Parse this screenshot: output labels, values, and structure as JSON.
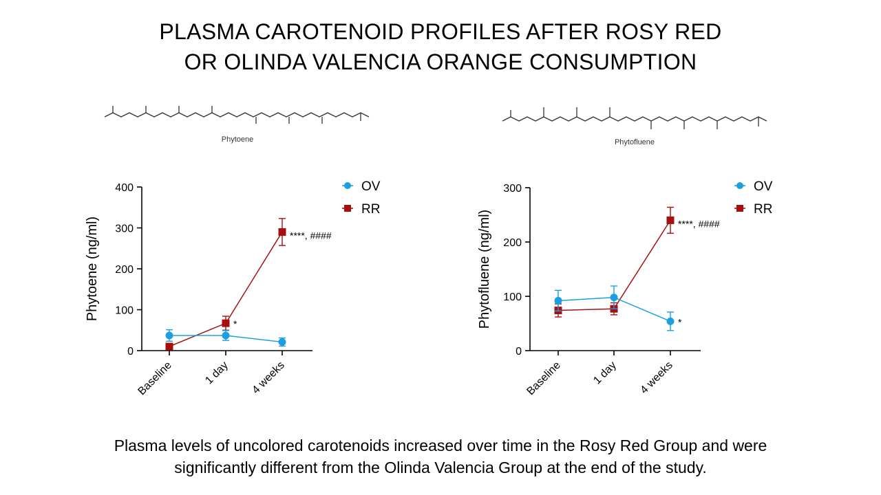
{
  "title_lines": [
    "PLASMA CAROTENOID PROFILES AFTER ROSY RED",
    "OR OLINDA VALENCIA ORANGE CONSUMPTION"
  ],
  "caption_lines": [
    "Plasma levels of uncolored carotenoids increased over time in the Rosy Red Group and were",
    "significantly different from the Olinda Valencia Group at the end of the study."
  ],
  "colors": {
    "OV": "#1a9fe0",
    "RR": "#a50f0f",
    "axis": "#000000"
  },
  "chart_data": [
    {
      "type": "line",
      "molecule_label": "Phytoene",
      "ylabel": "Phytoene (ng/ml)",
      "xlabel": "",
      "categories": [
        "Baseline",
        "1 day",
        "4 weeks"
      ],
      "ylim": [
        0,
        400
      ],
      "yticks": [
        0,
        100,
        200,
        300,
        400
      ],
      "legend": {
        "position": "top-right",
        "entries": [
          "OV",
          "RR"
        ]
      },
      "grid": false,
      "series": [
        {
          "name": "OV",
          "marker": "circle",
          "values": [
            37,
            37,
            21
          ],
          "errors": [
            14,
            12,
            10
          ]
        },
        {
          "name": "RR",
          "marker": "square",
          "values": [
            10,
            67,
            290
          ],
          "errors": [
            3,
            17,
            33
          ]
        }
      ],
      "annotations": [
        {
          "category_index": 1,
          "series": "RR",
          "text": "*"
        },
        {
          "category_index": 2,
          "series": "RR",
          "text": "****, ####"
        }
      ]
    },
    {
      "type": "line",
      "molecule_label": "Phytofluene",
      "ylabel": "Phytofluene (ng/ml)",
      "xlabel": "",
      "categories": [
        "Baseline",
        "1 day",
        "4 weeks"
      ],
      "ylim": [
        0,
        300
      ],
      "yticks": [
        0,
        100,
        200,
        300
      ],
      "legend": {
        "position": "top-right",
        "entries": [
          "OV",
          "RR"
        ]
      },
      "grid": false,
      "series": [
        {
          "name": "OV",
          "marker": "circle",
          "values": [
            92,
            98,
            54
          ],
          "errors": [
            19,
            21,
            17
          ]
        },
        {
          "name": "RR",
          "marker": "square",
          "values": [
            74,
            77,
            240
          ],
          "errors": [
            12,
            11,
            24
          ]
        }
      ],
      "annotations": [
        {
          "category_index": 2,
          "series": "RR",
          "text": "****, ####"
        },
        {
          "category_index": 2,
          "series": "OV",
          "text": "*"
        }
      ]
    }
  ]
}
